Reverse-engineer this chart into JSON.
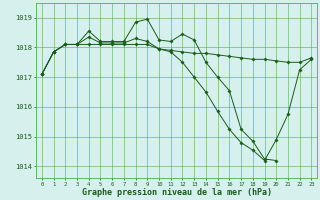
{
  "title": "Graphe pression niveau de la mer (hPa)",
  "bg_color": "#d6f0ee",
  "grid_color": "#55aa55",
  "line_color": "#1a5c1a",
  "xlim": [
    -0.5,
    23.5
  ],
  "ylim": [
    1013.6,
    1019.5
  ],
  "yticks": [
    1014,
    1015,
    1016,
    1017,
    1018,
    1019
  ],
  "xticks": [
    0,
    1,
    2,
    3,
    4,
    5,
    6,
    7,
    8,
    9,
    10,
    11,
    12,
    13,
    14,
    15,
    16,
    17,
    18,
    19,
    20,
    21,
    22,
    23
  ],
  "series1": {
    "x": [
      0,
      1,
      2,
      3,
      4,
      5,
      6,
      7,
      8,
      9,
      10,
      11,
      12,
      13,
      14,
      15,
      16,
      17,
      18,
      19,
      20,
      21,
      22,
      23
    ],
    "y": [
      1017.1,
      1017.85,
      1018.1,
      1018.1,
      1018.1,
      1018.1,
      1018.1,
      1018.1,
      1018.1,
      1018.1,
      1017.95,
      1017.9,
      1017.85,
      1017.8,
      1017.8,
      1017.75,
      1017.7,
      1017.65,
      1017.6,
      1017.6,
      1017.55,
      1017.5,
      1017.5,
      1017.65
    ]
  },
  "series2": {
    "x": [
      0,
      1,
      2,
      3,
      4,
      5,
      6,
      7,
      8,
      9,
      10,
      11,
      12,
      13,
      14,
      15,
      16,
      17,
      18,
      19,
      20
    ],
    "y": [
      1017.1,
      1017.85,
      1018.1,
      1018.1,
      1018.55,
      1018.2,
      1018.2,
      1018.2,
      1018.85,
      1018.95,
      1018.25,
      1018.2,
      1018.45,
      1018.25,
      1017.5,
      1017.0,
      1016.55,
      1015.25,
      1014.85,
      1014.25,
      1014.2
    ]
  },
  "series3": {
    "x": [
      0,
      1,
      2,
      3,
      4,
      5,
      6,
      7,
      8,
      9,
      10,
      11,
      12,
      13,
      14,
      15,
      16,
      17,
      18,
      19,
      20,
      21,
      22,
      23
    ],
    "y": [
      1017.1,
      1017.85,
      1018.1,
      1018.1,
      1018.35,
      1018.15,
      1018.15,
      1018.15,
      1018.3,
      1018.2,
      1017.95,
      1017.85,
      1017.5,
      1017.0,
      1016.5,
      1015.85,
      1015.25,
      1014.8,
      1014.55,
      1014.2,
      1014.9,
      1015.75,
      1017.25,
      1017.6
    ]
  }
}
